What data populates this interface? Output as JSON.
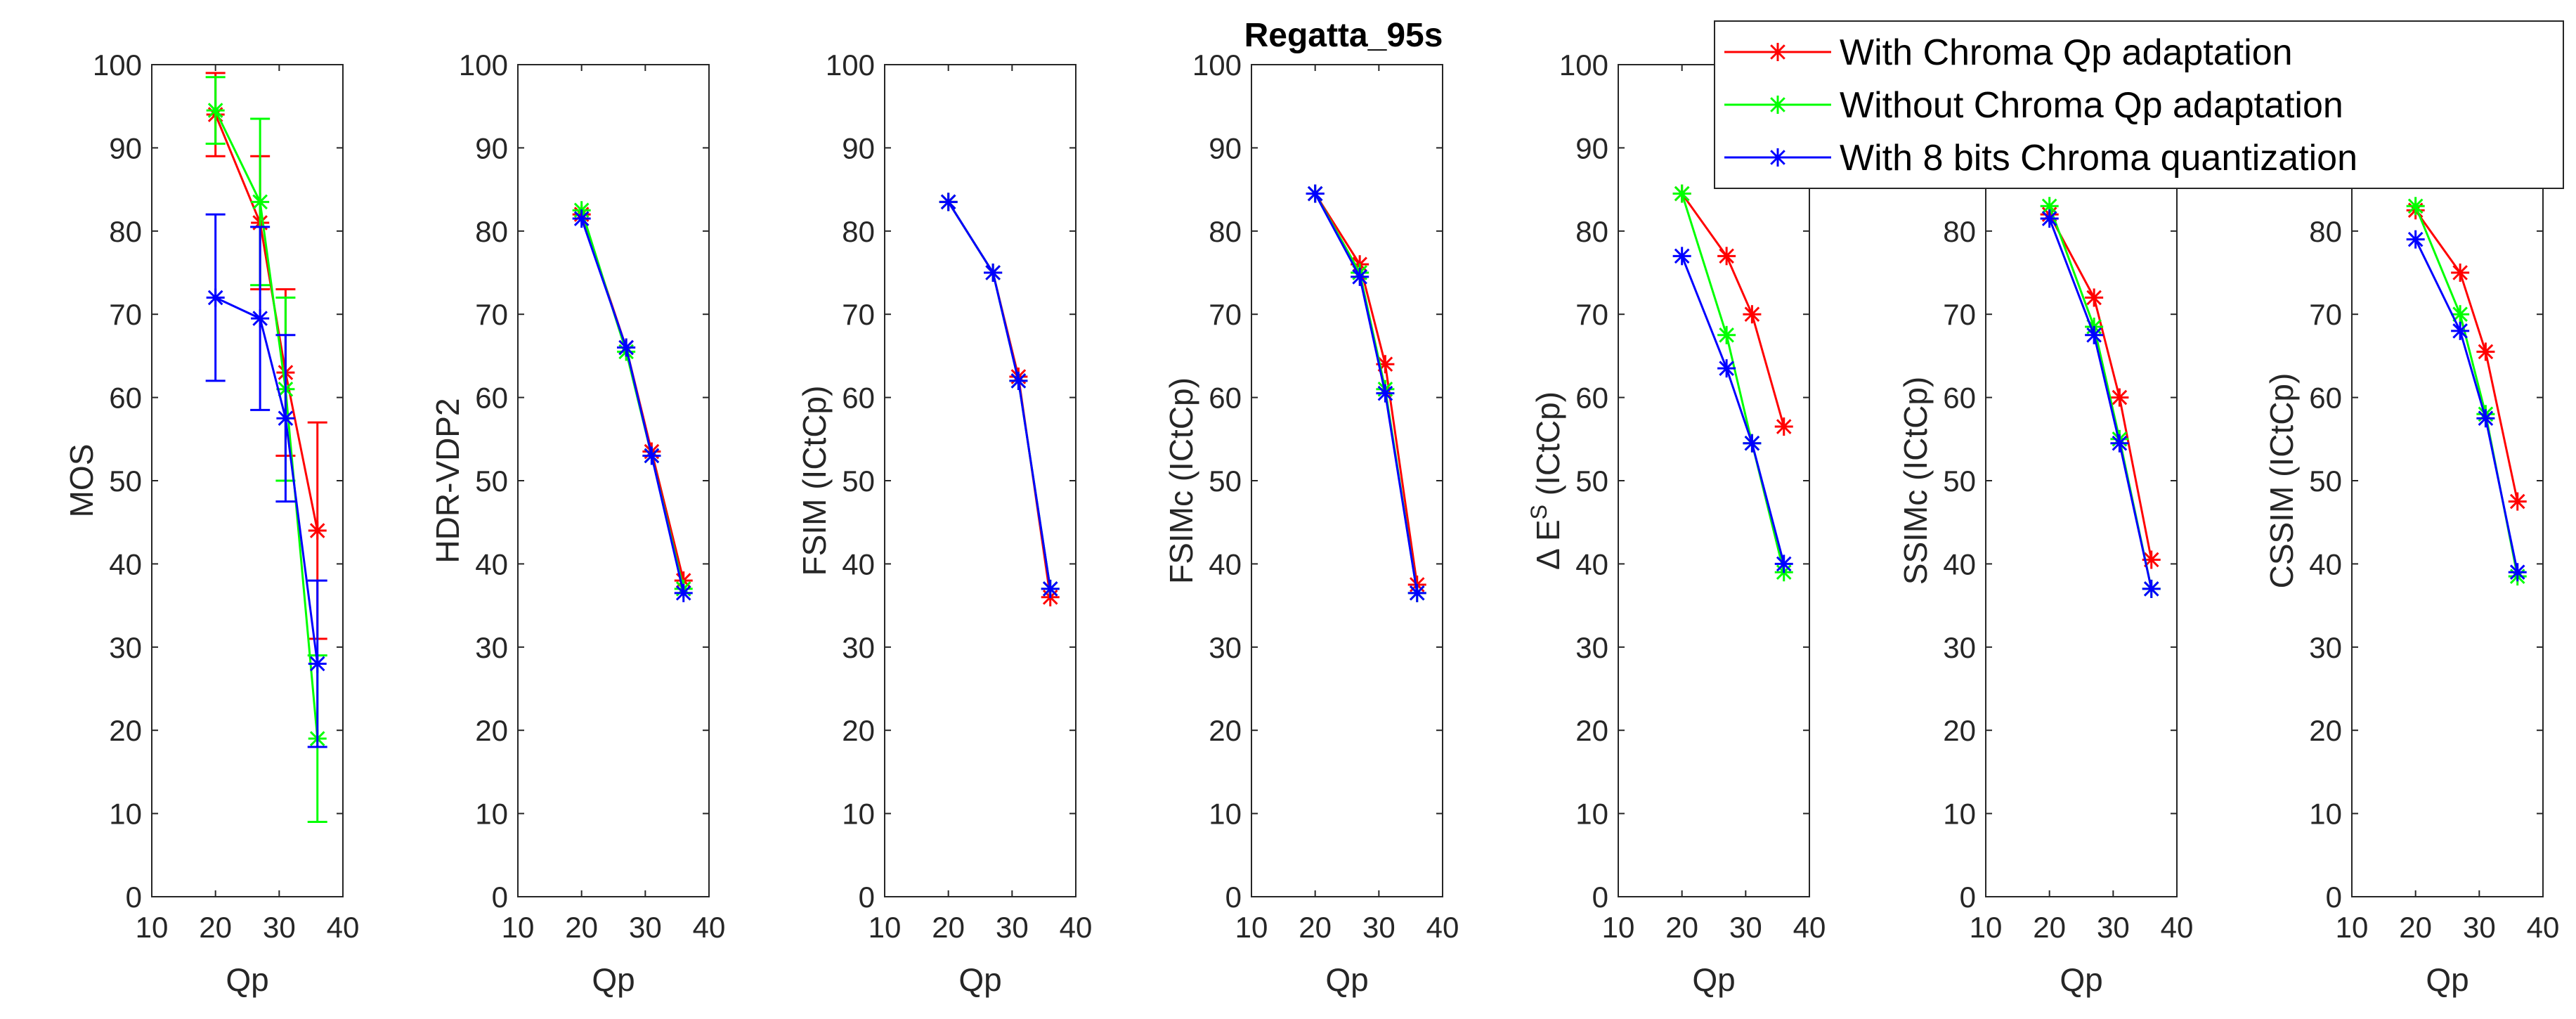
{
  "chart_data": {
    "type": "line",
    "title": "Regatta_95s",
    "legend": {
      "placement": "top-right",
      "entries": [
        "With Chroma Qp adaptation",
        "Without Chroma Qp adaptation",
        "With 8 bits Chroma quantization"
      ]
    },
    "colors": {
      "With Chroma Qp adaptation": "#ff0000",
      "Without Chroma Qp adaptation": "#00ff00",
      "With 8 bits Chroma quantization": "#0000ff"
    },
    "shared_x": {
      "label": "Qp",
      "xlim": [
        10,
        40
      ],
      "ticks": [
        "10",
        "20",
        "30",
        "40"
      ]
    },
    "shared_y": {
      "ylim": [
        0,
        100
      ],
      "ticks": [
        "0",
        "10",
        "20",
        "30",
        "40",
        "50",
        "60",
        "70",
        "80",
        "90",
        "100"
      ]
    },
    "panels": [
      {
        "ylabel": "MOS",
        "series": [
          {
            "name": "With Chroma Qp adaptation",
            "x": [
              20,
              27,
              31,
              36
            ],
            "y": [
              94,
              81,
              63,
              44
            ],
            "err": [
              5,
              8,
              10,
              13
            ]
          },
          {
            "name": "Without Chroma Qp adaptation",
            "x": [
              20,
              27,
              31,
              36
            ],
            "y": [
              94.5,
              83.5,
              61,
              19
            ],
            "err": [
              4,
              10,
              11,
              10
            ]
          },
          {
            "name": "With 8 bits Chroma quantization",
            "x": [
              20,
              27,
              31,
              36
            ],
            "y": [
              72,
              69.5,
              57.5,
              28
            ],
            "err": [
              10,
              11,
              10,
              10
            ]
          }
        ]
      },
      {
        "ylabel": "HDR-VDP2",
        "series": [
          {
            "name": "With Chroma Qp adaptation",
            "x": [
              20,
              27,
              31,
              36
            ],
            "y": [
              82,
              66,
              53.5,
              38
            ]
          },
          {
            "name": "Without Chroma Qp adaptation",
            "x": [
              20,
              27,
              31,
              36
            ],
            "y": [
              82.5,
              65.5,
              53,
              37
            ]
          },
          {
            "name": "With 8 bits Chroma quantization",
            "x": [
              20,
              27,
              31,
              36
            ],
            "y": [
              81.5,
              66,
              53,
              36.5
            ]
          }
        ]
      },
      {
        "ylabel": "FSIM (ICtCp)",
        "series": [
          {
            "name": "With Chroma Qp adaptation",
            "x": [
              20,
              27,
              31,
              36
            ],
            "y": [
              83.5,
              75,
              62.5,
              36
            ]
          },
          {
            "name": "Without Chroma Qp adaptation",
            "x": [
              20,
              27,
              31,
              36
            ],
            "y": [
              83.5,
              75,
              62,
              37
            ]
          },
          {
            "name": "With 8 bits Chroma quantization",
            "x": [
              20,
              27,
              31,
              36
            ],
            "y": [
              83.5,
              75,
              62,
              37
            ]
          }
        ]
      },
      {
        "ylabel": "FSIMc (ICtCp)",
        "series": [
          {
            "name": "With Chroma Qp adaptation",
            "x": [
              20,
              27,
              31,
              36
            ],
            "y": [
              84.5,
              76,
              64,
              37.5
            ]
          },
          {
            "name": "Without Chroma Qp adaptation",
            "x": [
              20,
              27,
              31,
              36
            ],
            "y": [
              84.5,
              75,
              61,
              36.5
            ]
          },
          {
            "name": "With 8 bits Chroma quantization",
            "x": [
              20,
              27,
              31,
              36
            ],
            "y": [
              84.5,
              74.5,
              60.5,
              36.5
            ]
          }
        ]
      },
      {
        "ylabel": "Δ E^S (ICtCp)",
        "ylabel_parts": {
          "delta": "Δ",
          "e": "E",
          "sup": "S",
          "rest": "(ICtCp)"
        },
        "series": [
          {
            "name": "With Chroma Qp adaptation",
            "x": [
              20,
              27,
              31,
              36
            ],
            "y": [
              84.5,
              77,
              70,
              56.5
            ]
          },
          {
            "name": "Without Chroma Qp adaptation",
            "x": [
              20,
              27,
              31,
              36
            ],
            "y": [
              84.5,
              67.5,
              54.5,
              39
            ]
          },
          {
            "name": "With 8 bits Chroma quantization",
            "x": [
              20,
              27,
              31,
              36
            ],
            "y": [
              77,
              63.5,
              54.5,
              40
            ]
          }
        ]
      },
      {
        "ylabel": "SSIMc (ICtCp)",
        "series": [
          {
            "name": "With Chroma Qp adaptation",
            "x": [
              20,
              27,
              31,
              36
            ],
            "y": [
              82,
              72,
              60,
              40.5
            ]
          },
          {
            "name": "Without Chroma Qp adaptation",
            "x": [
              20,
              27,
              31,
              36
            ],
            "y": [
              83,
              68.5,
              55,
              37
            ]
          },
          {
            "name": "With 8 bits Chroma quantization",
            "x": [
              20,
              27,
              31,
              36
            ],
            "y": [
              81.5,
              67.5,
              54.5,
              37
            ]
          }
        ]
      },
      {
        "ylabel": "CSSIM (ICtCp)",
        "series": [
          {
            "name": "With Chroma Qp adaptation",
            "x": [
              20,
              27,
              31,
              36
            ],
            "y": [
              82.5,
              75,
              65.5,
              47.5
            ]
          },
          {
            "name": "Without Chroma Qp adaptation",
            "x": [
              20,
              27,
              31,
              36
            ],
            "y": [
              83,
              70,
              58,
              38.5
            ]
          },
          {
            "name": "With 8 bits Chroma quantization",
            "x": [
              20,
              27,
              31,
              36
            ],
            "y": [
              79,
              68,
              57.5,
              39
            ]
          }
        ]
      }
    ]
  }
}
